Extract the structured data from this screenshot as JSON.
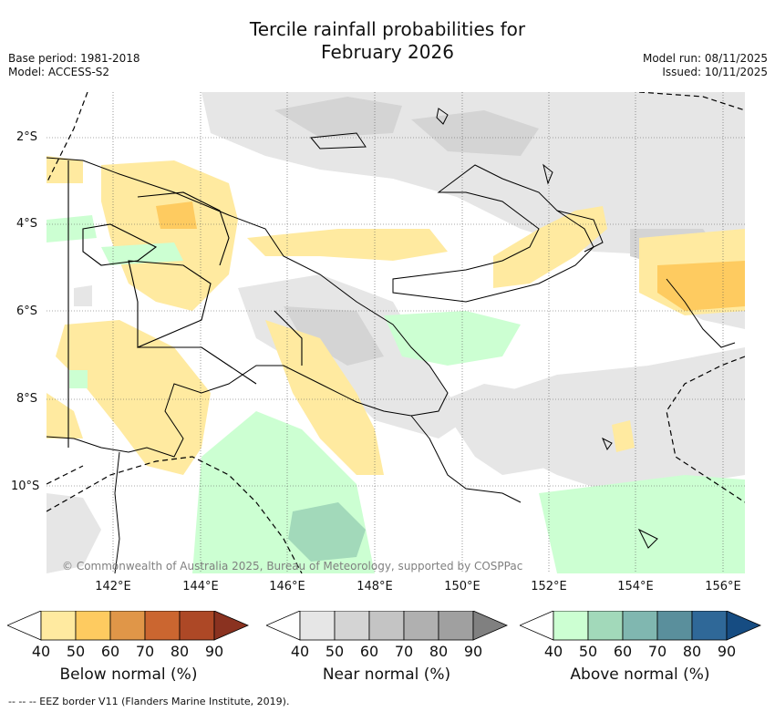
{
  "title_line1": "Tercile rainfall probabilities for",
  "title_line2": "February 2026",
  "base_period": "Base period: 1981-2018",
  "model": "Model: ACCESS-S2",
  "model_run": "Model run: 08/11/2025",
  "issued": "Issued: 10/11/2025",
  "lat_labels": [
    "2°S",
    "4°S",
    "6°S",
    "8°S",
    "10°S"
  ],
  "lon_labels": [
    "142°E",
    "144°E",
    "146°E",
    "148°E",
    "150°E",
    "152°E",
    "154°E",
    "156°E"
  ],
  "copyright": "© Commonwealth of Australia 2025, Bureau of Meteorology, supported by COSPPac",
  "legends": [
    {
      "title": "Below normal (%)",
      "ticks": [
        "40",
        "50",
        "60",
        "70",
        "80",
        "90"
      ],
      "colors": [
        "#ffffff",
        "#ffeaa0",
        "#fecb60",
        "#e09648",
        "#cb6630",
        "#ad4826",
        "#8a3220"
      ]
    },
    {
      "title": "Near normal (%)",
      "ticks": [
        "40",
        "50",
        "60",
        "70",
        "80",
        "90"
      ],
      "colors": [
        "#ffffff",
        "#e6e6e6",
        "#d4d4d4",
        "#c4c4c4",
        "#b0b0b0",
        "#a0a0a0",
        "#808080"
      ]
    },
    {
      "title": "Above normal (%)",
      "ticks": [
        "40",
        "50",
        "60",
        "70",
        "80",
        "90"
      ],
      "colors": [
        "#ffffff",
        "#ccffd2",
        "#a2d9ba",
        "#80b7b0",
        "#5a8f9c",
        "#2f6898",
        "#164c82"
      ]
    }
  ],
  "footer": "-- -- -- EEZ border V11 (Flanders Marine Institute, 2019)."
}
